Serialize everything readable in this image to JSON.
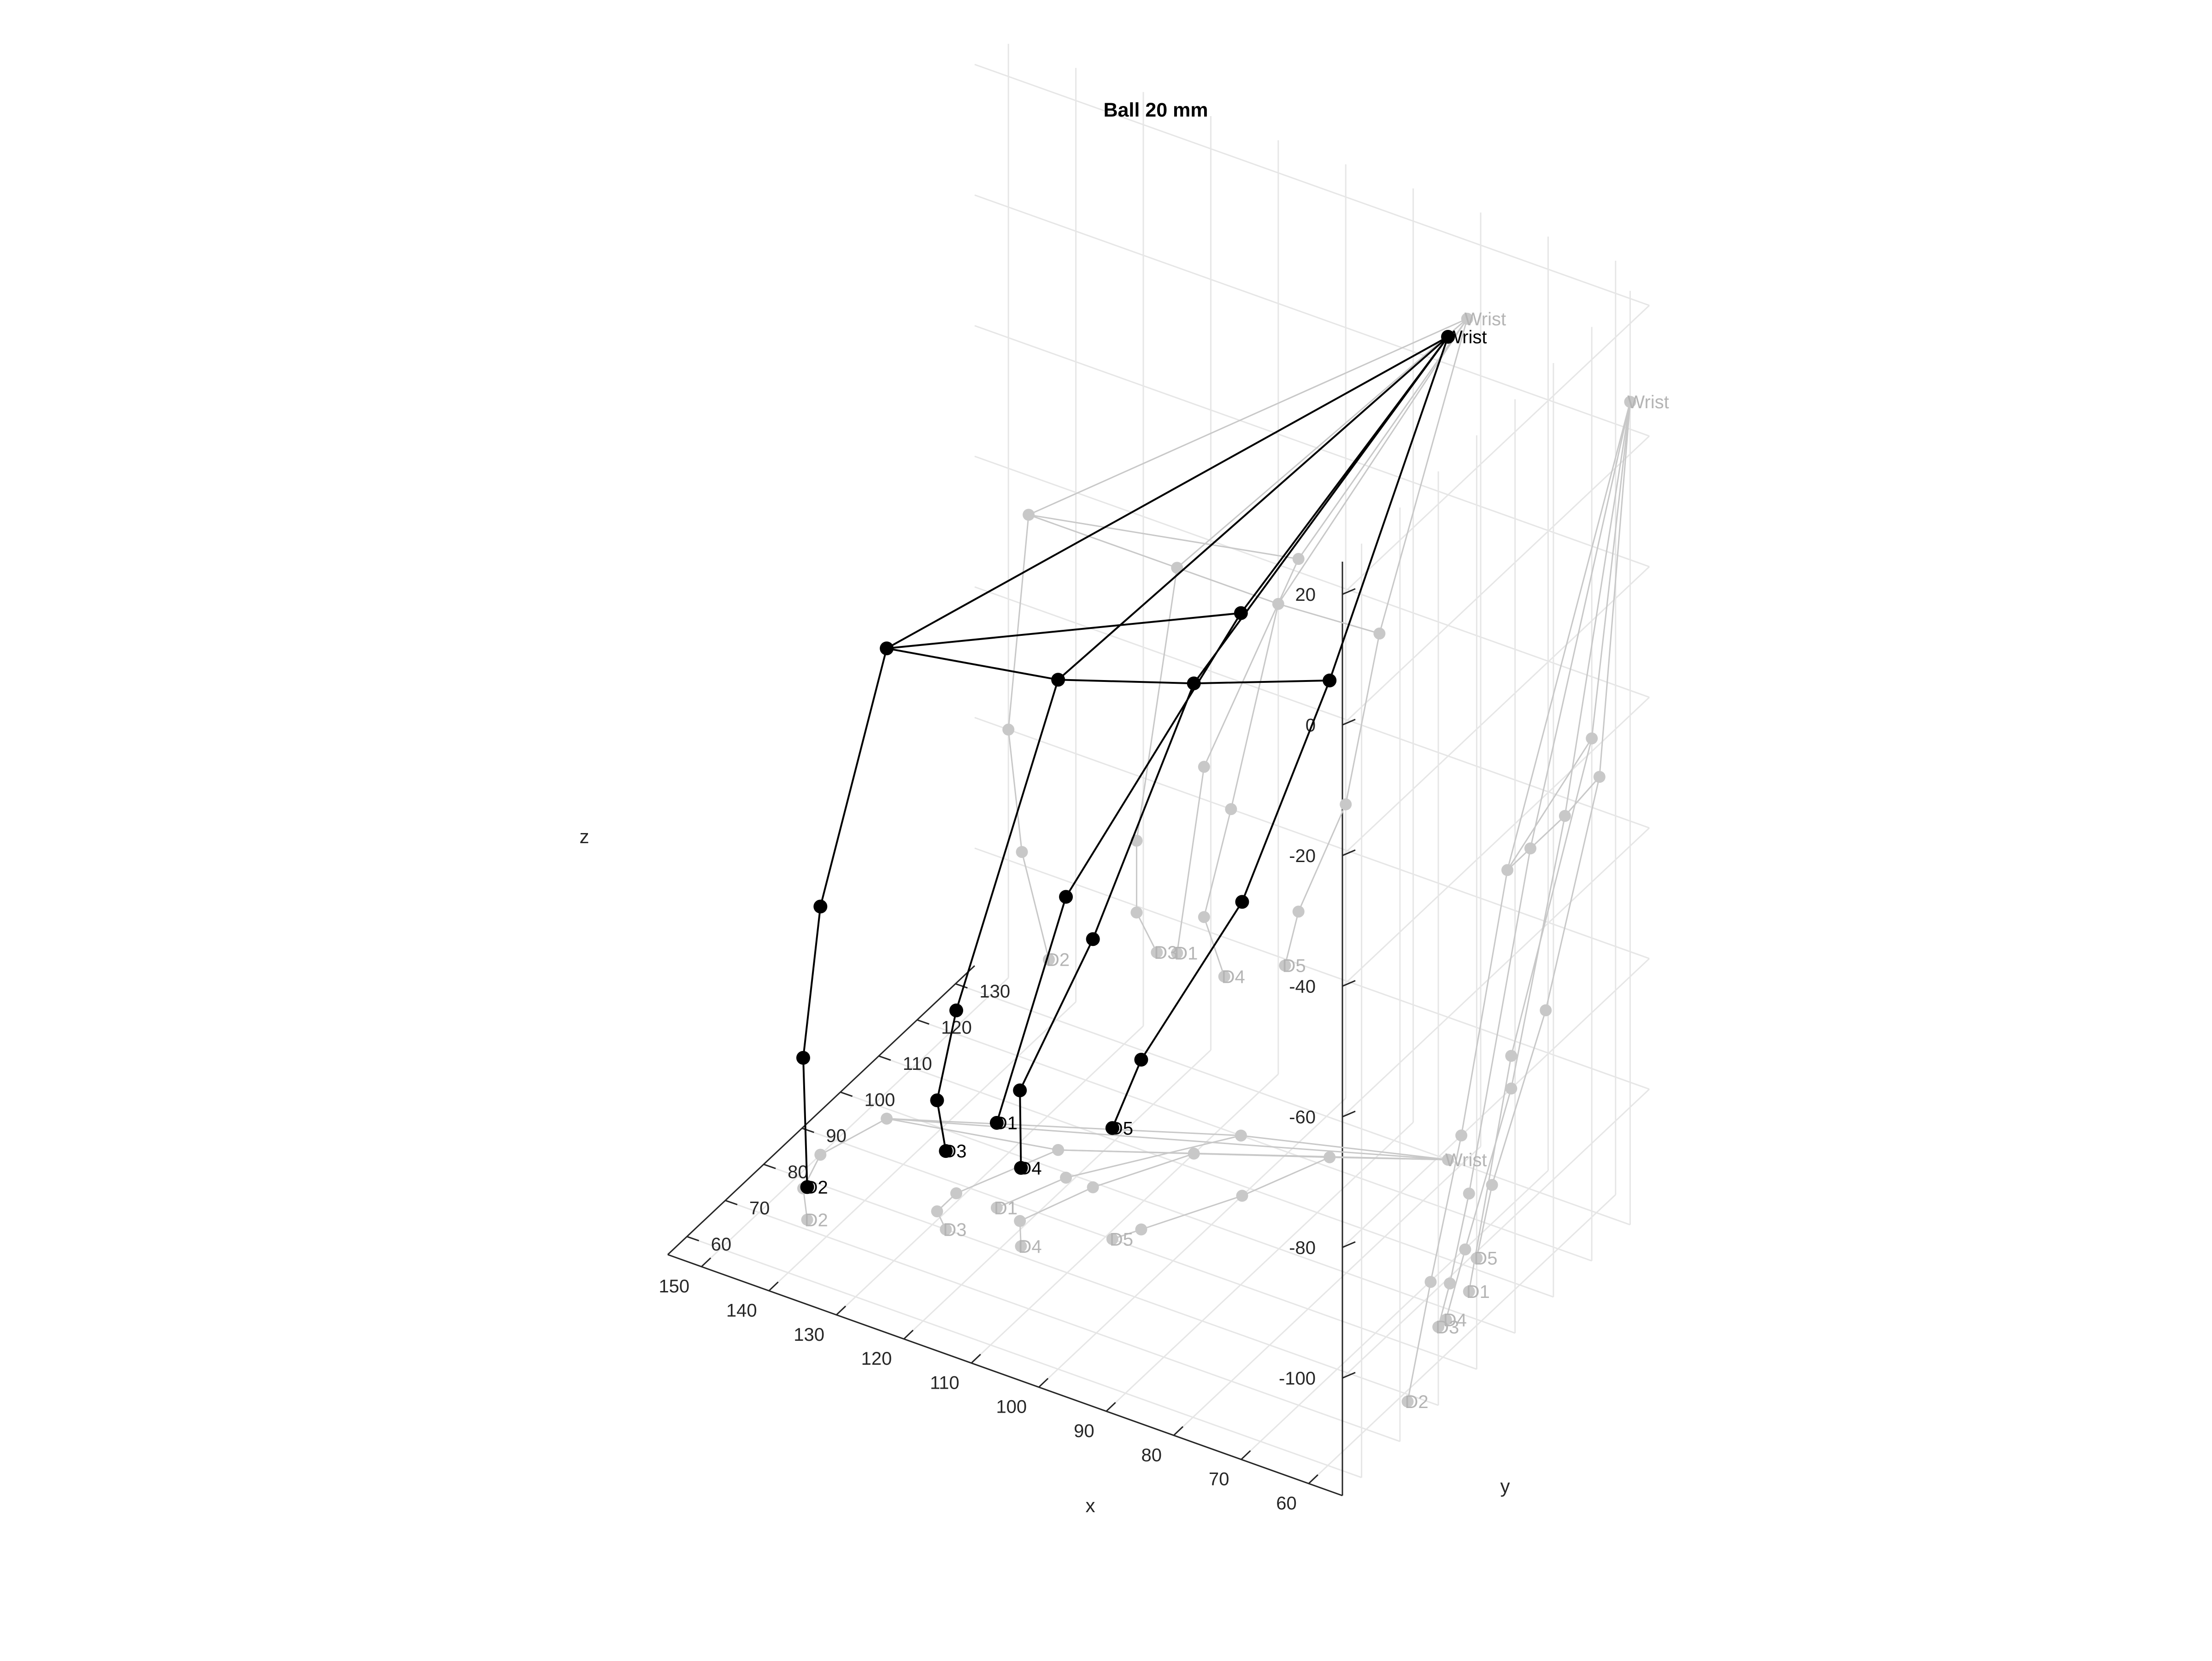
{
  "chart_data": {
    "type": "line3d",
    "title": "Ball 20 mm",
    "xlabel": "x",
    "ylabel": "y",
    "zlabel": "z",
    "xlim": [
      55,
      155
    ],
    "ylim": [
      55,
      135
    ],
    "zlim": [
      -118,
      25
    ],
    "xticks": [
      "60",
      "70",
      "80",
      "90",
      "100",
      "110",
      "120",
      "130",
      "140",
      "150"
    ],
    "yticks": [
      "60",
      "70",
      "80",
      "90",
      "100",
      "110",
      "120",
      "130"
    ],
    "zticks": [
      "20",
      "0",
      "-20",
      "-40",
      "-60",
      "-80",
      "-100"
    ],
    "colors": {
      "main": "#000000",
      "projection": "#c8c8c8",
      "grid": "#e6e6e6",
      "axis": "#262626"
    },
    "grid": true,
    "joint_labels": {
      "wrist": "Wrist",
      "d1": "D1",
      "d2": "D2",
      "d3": "D3",
      "d4": "D4",
      "d5": "D5"
    },
    "joints": {
      "wrist": [
        82,
        130,
        8
      ],
      "d1_a": [
        107,
        120,
        -38
      ],
      "d1_b": [
        121,
        99,
        -75
      ],
      "d1_t": [
        125,
        88,
        -105
      ],
      "d2_a": [
        147,
        98,
        -46
      ],
      "d2_b": [
        150,
        86,
        -80
      ],
      "d2_c": [
        148,
        78,
        -98
      ],
      "d2_t": [
        144,
        72,
        -113
      ],
      "mcp3": [
        125,
        104,
        -46
      ],
      "d3_b": [
        131,
        88,
        -90
      ],
      "d3_c": [
        131,
        83,
        -101
      ],
      "d3_t": [
        128,
        80,
        -106
      ],
      "mcp4": [
        110,
        113,
        -46
      ],
      "d4_b": [
        117,
        99,
        -80
      ],
      "d4_c": [
        121,
        87,
        -98
      ],
      "d4_t": [
        118,
        82,
        -106
      ],
      "d5_a": [
        95,
        122,
        -45
      ],
      "d5_b": [
        100,
        108,
        -73
      ],
      "d5_c": [
        107,
        94,
        -92
      ],
      "d5_t": [
        109,
        90,
        -101
      ]
    },
    "series": [
      {
        "path": [
          "wrist",
          "d1_a",
          "d1_b",
          "d1_t"
        ]
      },
      {
        "path": [
          "wrist",
          "d2_a",
          "d2_b",
          "d2_c",
          "d2_t"
        ]
      },
      {
        "path": [
          "wrist",
          "mcp3",
          "d3_b",
          "d3_c",
          "d3_t"
        ]
      },
      {
        "path": [
          "wrist",
          "mcp4",
          "d4_b",
          "d4_c",
          "d4_t"
        ]
      },
      {
        "path": [
          "wrist",
          "d5_a",
          "d5_b",
          "d5_c",
          "d5_t"
        ]
      },
      {
        "path": [
          "d1_a",
          "d2_a",
          "mcp3",
          "mcp4",
          "d5_a"
        ]
      }
    ],
    "labeled_joints": [
      {
        "joint": "wrist",
        "label": "wrist"
      },
      {
        "joint": "d1_t",
        "label": "d1"
      },
      {
        "joint": "d2_t",
        "label": "d2"
      },
      {
        "joint": "d3_t",
        "label": "d3"
      },
      {
        "joint": "d4_t",
        "label": "d4"
      },
      {
        "joint": "d5_t",
        "label": "d5"
      }
    ]
  }
}
